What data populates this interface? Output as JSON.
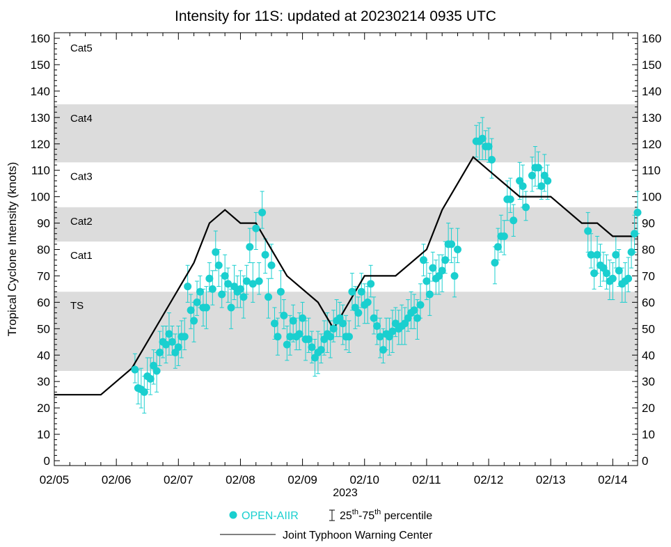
{
  "chart_data": {
    "type": "scatter",
    "title": "Intensity for 11S: updated at 20230214 0935 UTC",
    "ylabel": "Tropical Cyclone Intensity (knots)",
    "xlabel": "2023",
    "ylim": [
      0,
      160
    ],
    "xlim": [
      0,
      9.4
    ],
    "yticks": [
      0,
      10,
      20,
      30,
      40,
      50,
      60,
      70,
      80,
      90,
      100,
      110,
      120,
      130,
      140,
      150,
      160
    ],
    "xtick_labels": [
      "02/05",
      "02/06",
      "02/07",
      "02/08",
      "02/09",
      "02/10",
      "02/11",
      "02/12",
      "02/13",
      "02/14"
    ],
    "category_bands": [
      {
        "label": "TS",
        "from": 34,
        "to": 64,
        "shaded": true
      },
      {
        "label": "Cat1",
        "from": 64,
        "to": 83,
        "shaded": false
      },
      {
        "label": "Cat2",
        "from": 83,
        "to": 96,
        "shaded": true
      },
      {
        "label": "Cat3",
        "from": 96,
        "to": 113,
        "shaded": false
      },
      {
        "label": "Cat4",
        "from": 113,
        "to": 135,
        "shaded": true
      },
      {
        "label": "Cat5",
        "from": 135,
        "to": 160,
        "shaded": false
      }
    ],
    "series": [
      {
        "name": "Joint Typhoon Warning Center",
        "kind": "line",
        "color": "#000000",
        "x": [
          0.0,
          0.75,
          1.25,
          2.25,
          2.5,
          2.75,
          3.0,
          3.25,
          3.75,
          4.25,
          4.5,
          5.0,
          5.5,
          6.0,
          6.25,
          6.75,
          7.0,
          7.5,
          8.0,
          8.5,
          8.75,
          9.0,
          9.4
        ],
        "y": [
          25,
          25,
          35,
          75,
          90,
          95,
          90,
          90,
          70,
          60,
          50,
          70,
          70,
          80,
          95,
          115,
          110,
          100,
          100,
          90,
          90,
          85,
          85
        ]
      },
      {
        "name": "OPEN-AIIR",
        "kind": "points",
        "color": "#1ACFCF",
        "x": [
          1.3,
          1.35,
          1.4,
          1.45,
          1.5,
          1.55,
          1.6,
          1.65,
          1.7,
          1.75,
          1.8,
          1.85,
          1.9,
          1.95,
          2.0,
          2.05,
          2.1,
          2.15,
          2.2,
          2.25,
          2.3,
          2.35,
          2.4,
          2.45,
          2.5,
          2.55,
          2.6,
          2.65,
          2.7,
          2.75,
          2.8,
          2.85,
          2.9,
          2.95,
          3.0,
          3.05,
          3.1,
          3.15,
          3.2,
          3.25,
          3.3,
          3.35,
          3.4,
          3.45,
          3.5,
          3.55,
          3.6,
          3.65,
          3.7,
          3.75,
          3.8,
          3.85,
          3.9,
          3.95,
          4.0,
          4.05,
          4.1,
          4.15,
          4.2,
          4.25,
          4.3,
          4.35,
          4.4,
          4.45,
          4.5,
          4.55,
          4.6,
          4.65,
          4.7,
          4.75,
          4.8,
          4.85,
          4.9,
          4.95,
          5.0,
          5.05,
          5.1,
          5.15,
          5.2,
          5.25,
          5.3,
          5.35,
          5.4,
          5.45,
          5.5,
          5.55,
          5.6,
          5.65,
          5.7,
          5.75,
          5.8,
          5.85,
          5.9,
          5.95,
          6.0,
          6.05,
          6.1,
          6.15,
          6.2,
          6.25,
          6.3,
          6.35,
          6.4,
          6.45,
          6.5,
          6.8,
          6.85,
          6.9,
          6.95,
          7.0,
          7.05,
          7.1,
          7.15,
          7.2,
          7.25,
          7.3,
          7.35,
          7.4,
          7.5,
          7.55,
          7.6,
          7.7,
          7.75,
          7.8,
          7.85,
          7.9,
          7.95,
          8.6,
          8.65,
          8.7,
          8.75,
          8.8,
          8.85,
          8.9,
          8.95,
          9.0,
          9.05,
          9.1,
          9.15,
          9.2,
          9.25,
          9.3,
          9.35,
          9.4
        ],
        "y": [
          34.5,
          27.5,
          27,
          26,
          32,
          31,
          36,
          34,
          41,
          45,
          44,
          48,
          45,
          41,
          43,
          47,
          47,
          66,
          57,
          53,
          60,
          64,
          58,
          58,
          69,
          65,
          79,
          74,
          63,
          70,
          67,
          58,
          66,
          64,
          65,
          62,
          68,
          81,
          67,
          88,
          68,
          94,
          78,
          62,
          74,
          52,
          47,
          64,
          55,
          44,
          47,
          53,
          47,
          48,
          54,
          46,
          46,
          43,
          39,
          41,
          42,
          46,
          48,
          47,
          50,
          53,
          54,
          52,
          47,
          47,
          64,
          58,
          56,
          64,
          59,
          60,
          67,
          54,
          51,
          47,
          42,
          48,
          47,
          49,
          52,
          50,
          51,
          52,
          54,
          56,
          57,
          54,
          59,
          76,
          68,
          63,
          73,
          69,
          70,
          72,
          76,
          82,
          82,
          70,
          80,
          121,
          121,
          122,
          119,
          119,
          114,
          75,
          81,
          85,
          85,
          99,
          99,
          91,
          106,
          104,
          96,
          108,
          111,
          111,
          104,
          108,
          106,
          87,
          78,
          71,
          78,
          74,
          73,
          71,
          68,
          69,
          78,
          72,
          67,
          68,
          69,
          79,
          86,
          94
        ]
      }
    ],
    "legend": {
      "points_label": "OPEN-AIIR",
      "errorbar_prefix": "25",
      "errorbar_sup1": "th",
      "errorbar_mid": "-75",
      "errorbar_sup2": "th",
      "errorbar_suffix": " percentile",
      "line_label": "Joint Typhoon Warning Center"
    }
  }
}
